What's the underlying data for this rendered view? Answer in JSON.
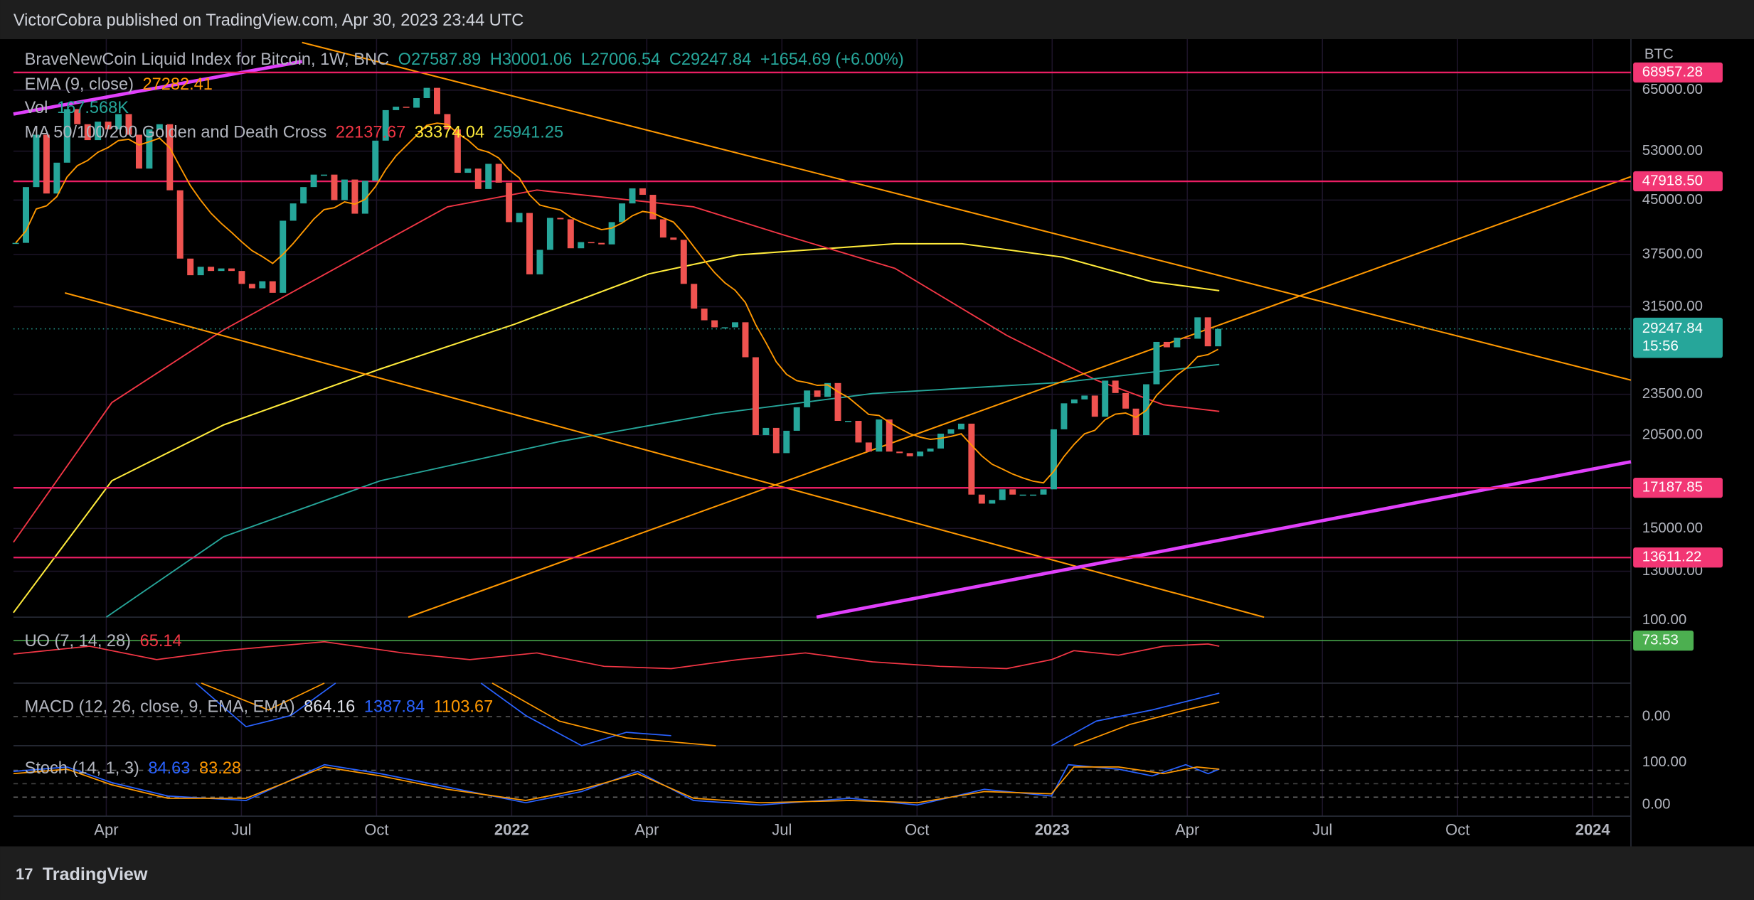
{
  "header": {
    "publisher": "VictorCobra published on TradingView.com, Apr 30, 2023 23:44 UTC"
  },
  "chart_data": {
    "type": "candlestick",
    "title": "BraveNewCoin Liquid Index for Bitcoin, 1W, BNC",
    "ohlc_text": [
      "O27587.89",
      "H30001.06",
      "L27006.54",
      "C29247.84"
    ],
    "change": "+1654.69 (+6.00%)",
    "currency": "BTC",
    "log_scale": true,
    "grid": true,
    "colors": {
      "up": "#26a69a",
      "down": "#ef5350"
    },
    "values": [
      39000,
      47000,
      56000,
      46000,
      51000,
      61000,
      58000,
      55000,
      58500,
      57000,
      60000,
      56000,
      50000,
      57000,
      58000,
      46500,
      37000,
      35000,
      36000,
      35500,
      35800,
      35500,
      34000,
      33500,
      34300,
      33000,
      42000,
      44500,
      47000,
      49000,
      49000,
      45000,
      48200,
      43000,
      48000,
      54900,
      60800,
      61500,
      61300,
      63300,
      65500,
      60000,
      57000,
      49300,
      50000,
      46700,
      50800,
      47700,
      41800,
      43100,
      35100,
      38100,
      42400,
      42200,
      38300,
      39100,
      39000,
      38800,
      41800,
      44500,
      46800,
      45800,
      42200,
      39700,
      39400,
      34000,
      31300,
      30100,
      29400,
      29400,
      29900,
      26600,
      20500,
      21000,
      19300,
      20800,
      22500,
      23800,
      23300,
      24400,
      21500,
      21500,
      20000,
      19400,
      21600,
      19400,
      19300,
      19100,
      19400,
      19600,
      20600,
      20900,
      21300,
      16800,
      16300,
      16500,
      17100,
      16800,
      16800,
      16800,
      17100,
      20900,
      22800,
      23100,
      23400,
      21800,
      24600,
      23600,
      22400,
      20500,
      24300,
      28000,
      27500,
      28400,
      28300,
      30400,
      27590,
      29247.84
    ],
    "ylim": [
      11150,
      77100
    ],
    "yticks": [
      {
        "value": 65000,
        "label": "65000.00"
      },
      {
        "value": 53000,
        "label": "53000.00"
      },
      {
        "value": 45000,
        "label": "45000.00"
      },
      {
        "value": 37500,
        "label": "37500.00"
      },
      {
        "value": 31500,
        "label": "31500.00"
      },
      {
        "value": 23500,
        "label": "23500.00"
      },
      {
        "value": 20500,
        "label": "20500.00"
      },
      {
        "value": 15000,
        "label": "15000.00"
      },
      {
        "value": 13000,
        "label": "13000.00"
      }
    ],
    "levels": [
      {
        "value": 68957.28,
        "label": "68957.28"
      },
      {
        "value": 47918.5,
        "label": "47918.50"
      },
      {
        "value": 17187.85,
        "label": "17187.85"
      },
      {
        "value": 13611.22,
        "label": "13611.22"
      }
    ],
    "last_price": {
      "value": 29247.84,
      "label": "29247.84"
    },
    "countdown": "15:56",
    "xticks": [
      "Apr",
      "Jul",
      "Oct",
      "2022",
      "Apr",
      "Jul",
      "Oct",
      "2023",
      "Apr",
      "Jul",
      "Oct",
      "2024"
    ]
  },
  "indicators": [
    {
      "name": "EMA (9, close)",
      "values": [
        "27282.41"
      ],
      "colors": [
        "#ff9800"
      ]
    },
    {
      "name": "Vol",
      "values": [
        "167.568K"
      ],
      "colors": [
        "#26a69a"
      ]
    },
    {
      "name": "MA 50/100/200 Golden and Death Cross",
      "values": [
        "22137.67",
        "33374.04",
        "25941.25"
      ],
      "colors": [
        "#f23645",
        "#ffeb3b",
        "#26a69a"
      ]
    },
    {
      "name": "UO (7, 14, 28)",
      "values": [
        "65.14"
      ],
      "colors": [
        "#f23645"
      ]
    },
    {
      "name": "MACD (12, 26, close, 9, EMA, EMA)",
      "values": [
        "864.16",
        "1387.84",
        "1103.67"
      ],
      "colors": [
        "#e0e3eb",
        "#2962ff",
        "#ff9800"
      ]
    },
    {
      "name": "Stoch (14, 1, 3)",
      "values": [
        "84.63",
        "83.28"
      ],
      "colors": [
        "#2962ff",
        "#ff9800"
      ]
    }
  ],
  "panes": {
    "volume_tick": "100.00",
    "uo_tag": "73.53",
    "macd_tick": "0.00",
    "stoch_ticks": [
      "100.00",
      "0.00"
    ]
  },
  "footer": {
    "brand": "TradingView"
  }
}
